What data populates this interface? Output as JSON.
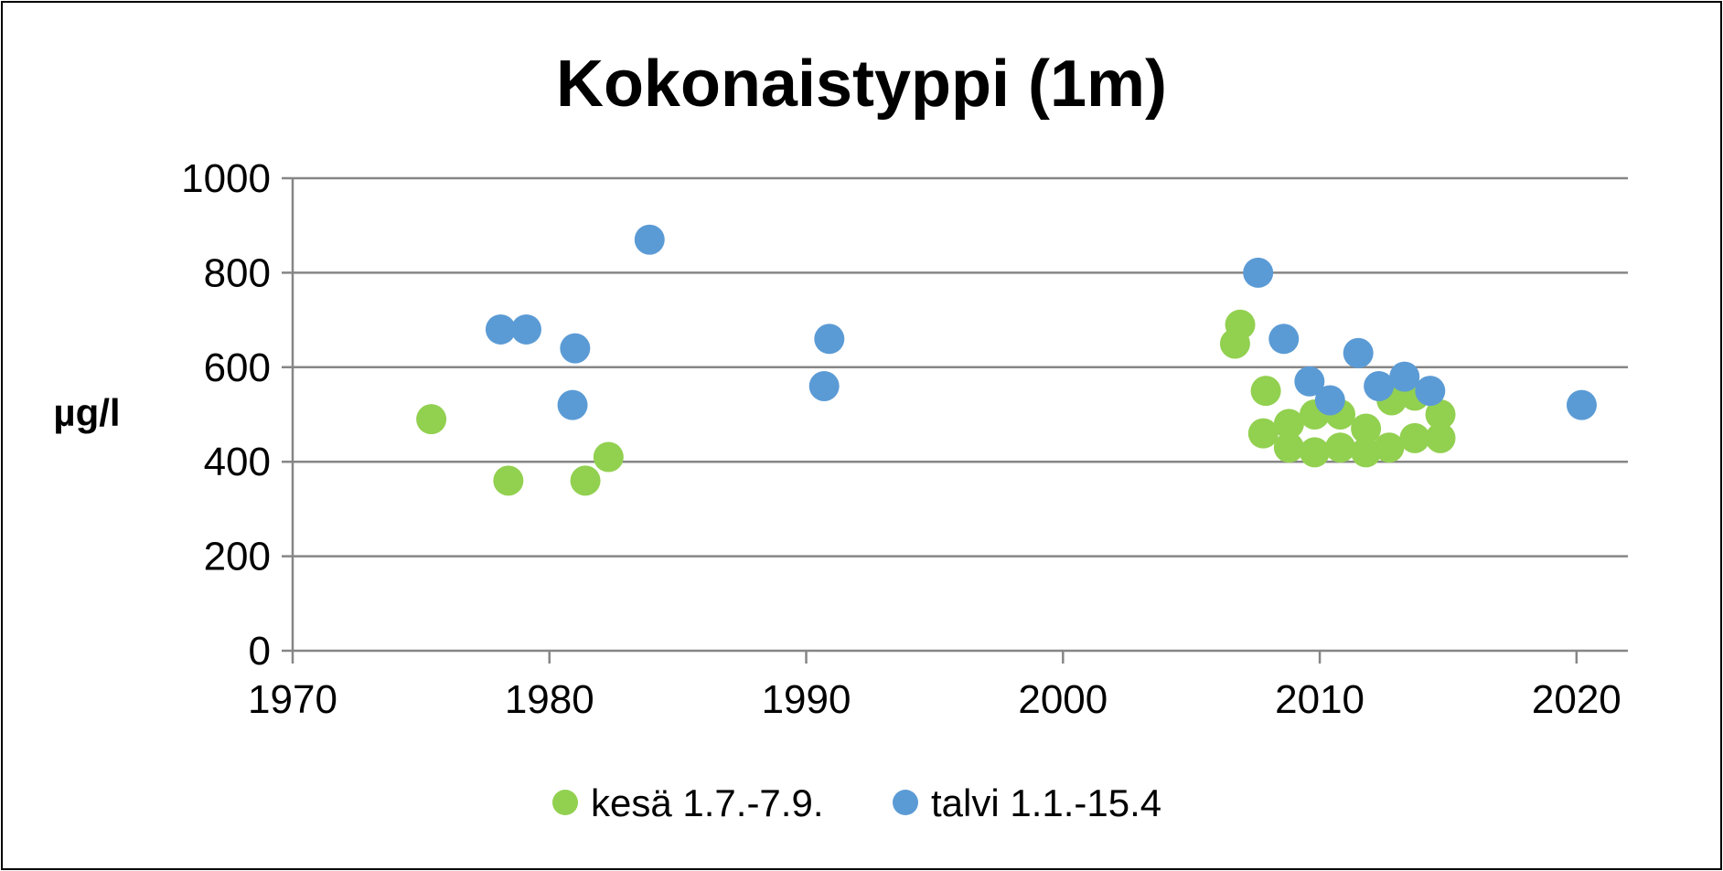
{
  "chart_data": {
    "type": "scatter",
    "title": "Kokonaistyppi (1m)",
    "xlabel": "",
    "ylabel": "µg/l",
    "xlim": [
      1970,
      2022
    ],
    "ylim": [
      0,
      1000
    ],
    "xticks": [
      "1970",
      "1980",
      "1990",
      "2000",
      "2010",
      "2020"
    ],
    "yticks": [
      "0",
      "200",
      "400",
      "600",
      "800",
      "1000"
    ],
    "grid": "horizontal",
    "legend_position": "bottom",
    "series": [
      {
        "name": "kesä 1.7.-7.9.",
        "color": "#92D050",
        "points": [
          {
            "x": 1975.4,
            "y": 490
          },
          {
            "x": 1978.4,
            "y": 360
          },
          {
            "x": 1981.4,
            "y": 360
          },
          {
            "x": 1982.3,
            "y": 410
          },
          {
            "x": 2006.9,
            "y": 690
          },
          {
            "x": 2006.7,
            "y": 650
          },
          {
            "x": 2007.9,
            "y": 550
          },
          {
            "x": 2007.8,
            "y": 460
          },
          {
            "x": 2008.8,
            "y": 480
          },
          {
            "x": 2008.8,
            "y": 430
          },
          {
            "x": 2009.8,
            "y": 500
          },
          {
            "x": 2009.8,
            "y": 420
          },
          {
            "x": 2010.8,
            "y": 500
          },
          {
            "x": 2010.8,
            "y": 430
          },
          {
            "x": 2011.8,
            "y": 470
          },
          {
            "x": 2011.8,
            "y": 420
          },
          {
            "x": 2012.8,
            "y": 530
          },
          {
            "x": 2012.7,
            "y": 430
          },
          {
            "x": 2013.7,
            "y": 540
          },
          {
            "x": 2013.7,
            "y": 450
          },
          {
            "x": 2014.7,
            "y": 500
          },
          {
            "x": 2014.7,
            "y": 450
          }
        ]
      },
      {
        "name": "talvi 1.1.-15.4",
        "color": "#5B9BD5",
        "points": [
          {
            "x": 1978.1,
            "y": 680
          },
          {
            "x": 1979.1,
            "y": 680
          },
          {
            "x": 1981.0,
            "y": 640
          },
          {
            "x": 1980.9,
            "y": 520
          },
          {
            "x": 1983.9,
            "y": 870
          },
          {
            "x": 1990.9,
            "y": 660
          },
          {
            "x": 1990.7,
            "y": 560
          },
          {
            "x": 2007.6,
            "y": 800
          },
          {
            "x": 2008.6,
            "y": 660
          },
          {
            "x": 2009.6,
            "y": 570
          },
          {
            "x": 2010.4,
            "y": 530
          },
          {
            "x": 2011.5,
            "y": 630
          },
          {
            "x": 2012.3,
            "y": 560
          },
          {
            "x": 2013.3,
            "y": 580
          },
          {
            "x": 2014.3,
            "y": 550
          },
          {
            "x": 2020.2,
            "y": 520
          }
        ]
      }
    ]
  }
}
